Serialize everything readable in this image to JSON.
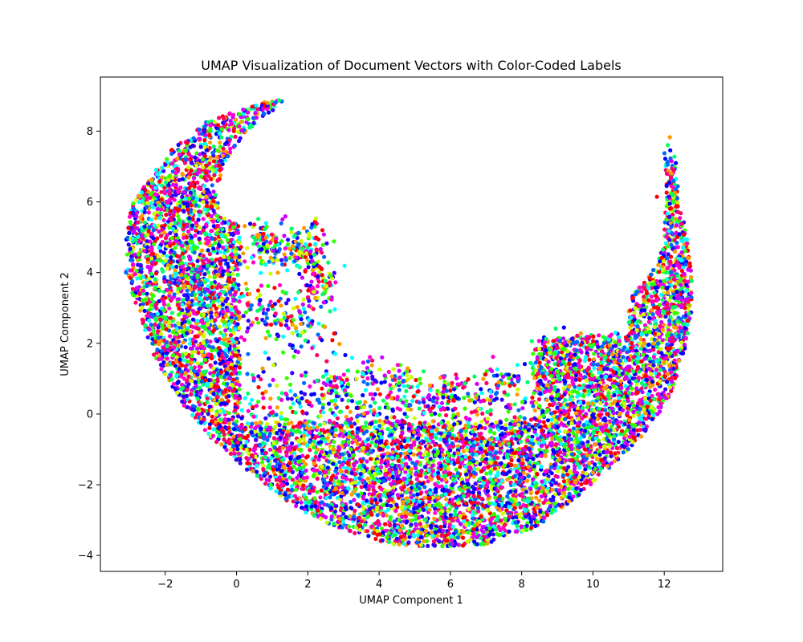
{
  "chart_data": {
    "type": "scatter",
    "title": "UMAP Visualization of Document Vectors with Color-Coded Labels",
    "xlabel": "UMAP Component 1",
    "ylabel": "UMAP Component 2",
    "xlim": [
      -3.82,
      13.64
    ],
    "ylim": [
      -4.45,
      9.53
    ],
    "xticks": [
      -2,
      0,
      2,
      4,
      6,
      8,
      10,
      12
    ],
    "yticks": [
      -4,
      -2,
      0,
      2,
      4,
      6,
      8
    ],
    "xtick_labels": [
      "−2",
      "0",
      "2",
      "4",
      "6",
      "8",
      "10",
      "12"
    ],
    "ytick_labels": [
      "−4",
      "−2",
      "0",
      "2",
      "4",
      "6",
      "8"
    ],
    "grid": false,
    "legend": "none",
    "colormap": "hsv",
    "palette": [
      "#ff0000",
      "#ff00cc",
      "#cc00ff",
      "#3300ff",
      "#0066ff",
      "#00ffff",
      "#00ff66",
      "#33ff00",
      "#ccff00",
      "#ff9900",
      "#ff0066",
      "#0000ff"
    ],
    "point_count_estimate": 9000,
    "regions": [
      {
        "name": "left-lobe",
        "x_range": [
          -3.1,
          0.6
        ],
        "y_range": [
          0.5,
          8.9
        ],
        "density": "high"
      },
      {
        "name": "top-arm",
        "x_range": [
          -0.5,
          1.4
        ],
        "y_range": [
          7.5,
          8.9
        ],
        "density": "medium"
      },
      {
        "name": "bottom-arc",
        "x_range": [
          0.0,
          10.5
        ],
        "y_range": [
          -3.8,
          0.6
        ],
        "density": "high"
      },
      {
        "name": "right-lobe",
        "x_range": [
          8.2,
          12.8
        ],
        "y_range": [
          -1.0,
          4.3
        ],
        "density": "high"
      },
      {
        "name": "right-tip",
        "x_range": [
          11.9,
          12.8
        ],
        "y_range": [
          4.3,
          7.4
        ],
        "density": "low"
      },
      {
        "name": "inner-cluster",
        "x_range": [
          0.2,
          3.1
        ],
        "y_range": [
          1.5,
          5.6
        ],
        "density": "low"
      },
      {
        "name": "center-sparse",
        "x_range": [
          3.0,
          8.2
        ],
        "y_range": [
          -0.5,
          1.5
        ],
        "density": "low"
      }
    ]
  }
}
